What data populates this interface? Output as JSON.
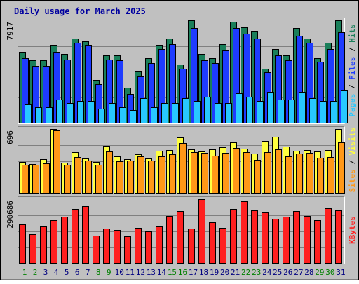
{
  "chart_data": {
    "type": "bar",
    "title": "Daily usage for March 2025",
    "categories": [
      "1",
      "2",
      "3",
      "4",
      "5",
      "6",
      "7",
      "8",
      "9",
      "10",
      "11",
      "12",
      "13",
      "14",
      "15",
      "16",
      "17",
      "18",
      "19",
      "20",
      "21",
      "22",
      "23",
      "24",
      "25",
      "26",
      "27",
      "28",
      "29",
      "30",
      "31"
    ],
    "weekend_days": [
      "1",
      "2",
      "8",
      "9",
      "15",
      "16",
      "22",
      "23",
      "29",
      "30"
    ],
    "panels": [
      {
        "id": "pages-files-hits",
        "max_label": "7917",
        "ylim": [
          0,
          7917
        ],
        "side_labels": [
          "Pages",
          "Files",
          "Hits"
        ],
        "series": [
          {
            "name": "Hits",
            "color": "#1a7f5a",
            "values": [
              5500,
              4800,
              4800,
              6000,
              5300,
              6500,
              6300,
              3300,
              5200,
              5200,
              2700,
              4000,
              5000,
              6000,
              6500,
              4500,
              7900,
              5300,
              5000,
              6100,
              7800,
              7400,
              7100,
              4200,
              5700,
              5200,
              7300,
              6500,
              5000,
              6200,
              7900
            ]
          },
          {
            "name": "Files",
            "color": "#1e3cff",
            "values": [
              5000,
              4400,
              4400,
              5500,
              4900,
              6200,
              6000,
              3000,
              4900,
              4800,
              2200,
              3600,
              4600,
              5700,
              6100,
              4200,
              7300,
              4800,
              4600,
              5600,
              7300,
              6900,
              6500,
              3900,
              5200,
              4800,
              6700,
              6200,
              4700,
              5700,
              7000
            ]
          },
          {
            "name": "Pages",
            "color": "#28c8ff",
            "values": [
              1400,
              1200,
              1200,
              1800,
              1500,
              1700,
              1700,
              1100,
              1500,
              1200,
              1000,
              1900,
              1200,
              1500,
              1500,
              1900,
              1700,
              2000,
              1500,
              1500,
              2300,
              2000,
              1700,
              2400,
              1800,
              1800,
              2400,
              1900,
              1700,
              1700,
              2500
            ]
          }
        ]
      },
      {
        "id": "visits-sites",
        "max_label": "696",
        "ylim": [
          0,
          696
        ],
        "side_labels": [
          "Sites",
          "Visits"
        ],
        "series": [
          {
            "name": "Visits",
            "color": "#ffff40",
            "values": [
              338,
              310,
              364,
              696,
              327,
              447,
              373,
              338,
              509,
              398,
              364,
              422,
              372,
              461,
              463,
              601,
              478,
              455,
              473,
              495,
              554,
              482,
              425,
              567,
              613,
              504,
              462,
              465,
              454,
              470,
              696
            ]
          },
          {
            "name": "Sites",
            "color": "#ff9818",
            "values": [
              303,
              305,
              319,
              677,
              303,
              391,
              348,
              307,
              455,
              344,
              348,
              396,
              353,
              396,
              417,
              542,
              441,
              439,
              403,
              437,
              492,
              443,
              360,
              445,
              474,
              401,
              428,
              435,
              379,
              391,
              553
            ]
          }
        ]
      },
      {
        "id": "kbytes",
        "max_label": "290686",
        "ylim": [
          0,
          290686
        ],
        "side_labels": [
          "KBytes"
        ],
        "series": [
          {
            "name": "KBytes",
            "color": "#ff2020",
            "values": [
              175000,
              130000,
              165000,
              195000,
              210000,
              245000,
              260000,
              125000,
              155000,
              150000,
              120000,
              160000,
              145000,
              165000,
              215000,
              235000,
              155000,
              290686,
              185000,
              160000,
              245000,
              280000,
              240000,
              230000,
              200000,
              210000,
              235000,
              215000,
              195000,
              250000,
              240000
            ]
          }
        ]
      }
    ],
    "side_label_colors": {
      "Pages": "#28c8ff",
      "Files": "#1e3cff",
      "Hits": "#1a7f5a",
      "Sites": "#ff9818",
      "Visits": "#ffff40",
      "KBytes": "#ff2020"
    },
    "colors": {
      "title": "#0000a0",
      "background": "#c0c0c0",
      "weekday_label": "#000080",
      "weekend_label": "#008000"
    }
  }
}
